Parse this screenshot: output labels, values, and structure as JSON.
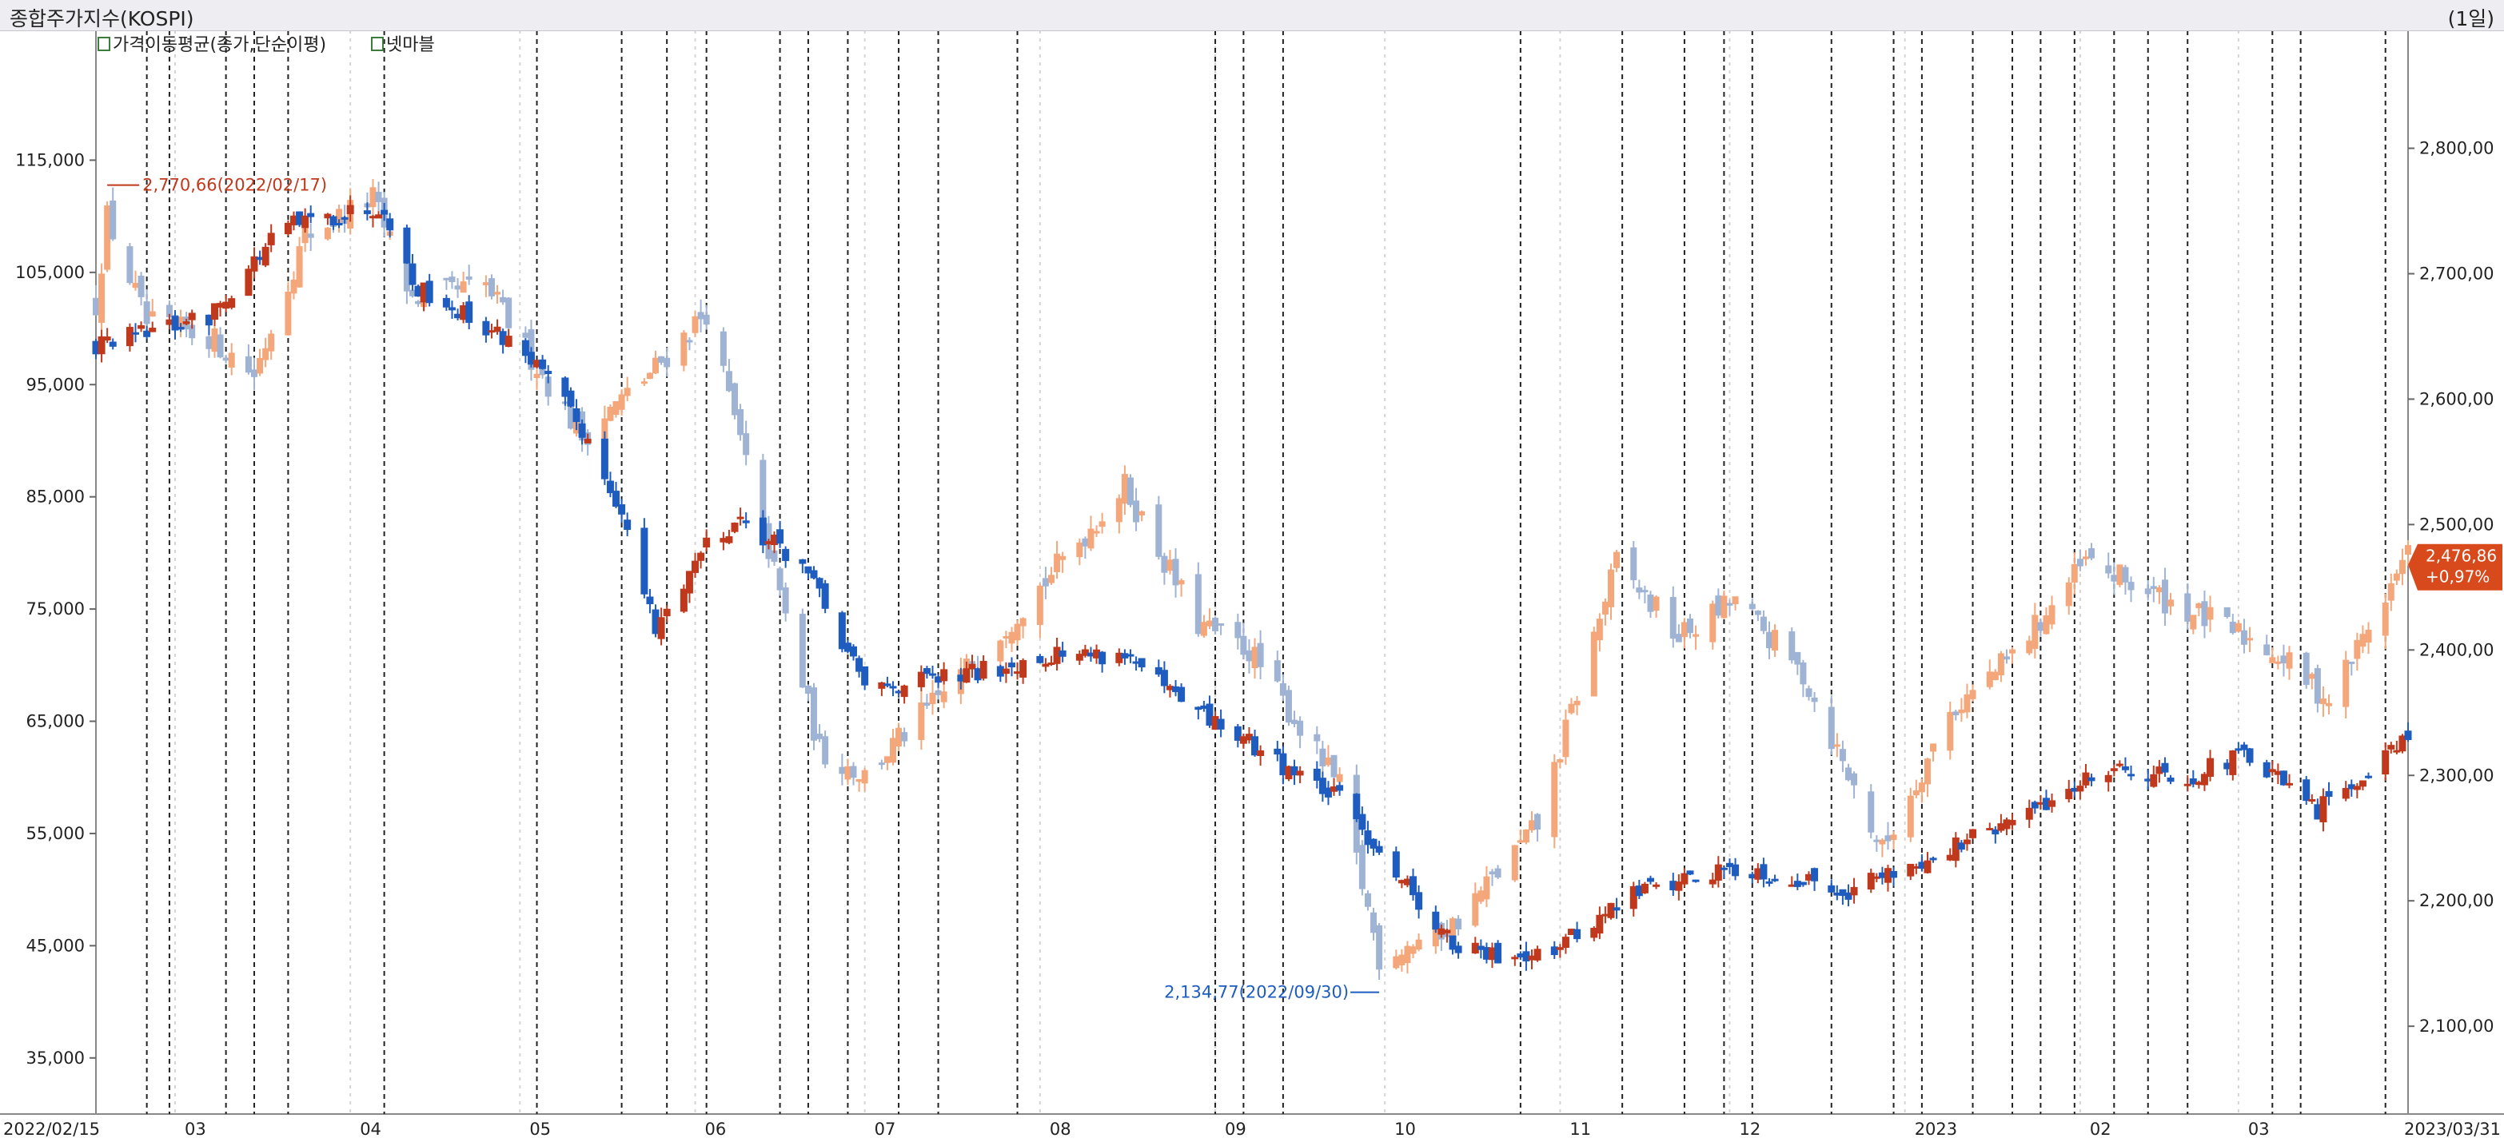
{
  "header": {
    "title": "종합주가지수(KOSPI)",
    "period": "(1일)"
  },
  "legend": [
    {
      "label": "가격이동평균(종가,단순이평)"
    },
    {
      "label": "넷마블"
    }
  ],
  "chart_data": {
    "type": "candlestick",
    "x_start": "2022/02/15",
    "x_end": "2023/03/31",
    "x_ticks": [
      "03",
      "04",
      "05",
      "06",
      "07",
      "08",
      "09",
      "10",
      "11",
      "12",
      "2023",
      "02",
      "03"
    ],
    "left_axis": {
      "ticks": [
        "115,000",
        "105,000",
        "95,000",
        "85,000",
        "75,000",
        "65,000",
        "55,000",
        "45,000",
        "35,000"
      ],
      "range": [
        30000,
        125000
      ]
    },
    "right_axis": {
      "ticks": [
        "2,800,00",
        "2,700,00",
        "2,600,00",
        "2,500,00",
        "2,400,00",
        "2,300,00",
        "2,200,00",
        "2,100,00"
      ],
      "range": [
        2030,
        2880
      ]
    },
    "current_value": {
      "value": "2,476,86",
      "change": "+0,97%"
    },
    "annotations": {
      "high": "2,770,66(2022/02/17)",
      "low": "2,134,77(2022/09/30)"
    },
    "colors": {
      "up": "#c0391c",
      "down": "#1f5cbf",
      "light_up": "#f4a77a",
      "light_down": "#9fb3d4"
    },
    "series": [
      {
        "name": "종합주가지수(KOSPI)",
        "axis": "right",
        "anchor_closes": [
          [
            "2022-02-15",
            2676
          ],
          [
            "2022-02-17",
            2745
          ],
          [
            "2022-02-24",
            2660
          ],
          [
            "2022-03-07",
            2650
          ],
          [
            "2022-03-15",
            2620
          ],
          [
            "2022-03-24",
            2730
          ],
          [
            "2022-04-05",
            2760
          ],
          [
            "2022-04-12",
            2680
          ],
          [
            "2022-04-25",
            2690
          ],
          [
            "2022-05-12",
            2570
          ],
          [
            "2022-05-24",
            2620
          ],
          [
            "2022-06-03",
            2670
          ],
          [
            "2022-06-14",
            2480
          ],
          [
            "2022-06-23",
            2320
          ],
          [
            "2022-07-01",
            2300
          ],
          [
            "2022-07-18",
            2380
          ],
          [
            "2022-08-01",
            2450
          ],
          [
            "2022-08-16",
            2530
          ],
          [
            "2022-08-29",
            2420
          ],
          [
            "2022-09-07",
            2400
          ],
          [
            "2022-09-23",
            2290
          ],
          [
            "2022-09-30",
            2155
          ],
          [
            "2022-10-13",
            2180
          ],
          [
            "2022-10-28",
            2260
          ],
          [
            "2022-11-11",
            2470
          ],
          [
            "2022-11-22",
            2410
          ],
          [
            "2022-12-02",
            2440
          ],
          [
            "2022-12-14",
            2380
          ],
          [
            "2022-12-28",
            2240
          ],
          [
            "2023-01-09",
            2350
          ],
          [
            "2023-01-20",
            2395
          ],
          [
            "2023-02-02",
            2470
          ],
          [
            "2023-02-16",
            2440
          ],
          [
            "2023-03-07",
            2400
          ],
          [
            "2023-03-17",
            2360
          ],
          [
            "2023-03-31",
            2476
          ]
        ]
      },
      {
        "name": "넷마블",
        "axis": "left",
        "anchor_closes": [
          [
            "2022-02-15",
            98500
          ],
          [
            "2022-03-07",
            101000
          ],
          [
            "2022-03-20",
            109000
          ],
          [
            "2022-04-07",
            111000
          ],
          [
            "2022-04-12",
            104000
          ],
          [
            "2022-05-02",
            98000
          ],
          [
            "2022-05-12",
            91000
          ],
          [
            "2022-05-18",
            85000
          ],
          [
            "2022-05-25",
            73000
          ],
          [
            "2022-06-03",
            81000
          ],
          [
            "2022-06-09",
            83000
          ],
          [
            "2022-06-20",
            79000
          ],
          [
            "2022-07-01",
            68000
          ],
          [
            "2022-07-18",
            69000
          ],
          [
            "2022-08-03",
            71000
          ],
          [
            "2022-08-16",
            71000
          ],
          [
            "2022-08-25",
            67000
          ],
          [
            "2022-09-07",
            63000
          ],
          [
            "2022-09-23",
            58000
          ],
          [
            "2022-10-04",
            51000
          ],
          [
            "2022-10-13",
            45000
          ],
          [
            "2022-10-20",
            44000
          ],
          [
            "2022-11-01",
            45000
          ],
          [
            "2022-11-15",
            50000
          ],
          [
            "2022-12-02",
            52000
          ],
          [
            "2022-12-22",
            50000
          ],
          [
            "2023-01-06",
            53000
          ],
          [
            "2023-01-20",
            56000
          ],
          [
            "2023-02-06",
            61000
          ],
          [
            "2023-02-20",
            60000
          ],
          [
            "2023-03-02",
            62000
          ],
          [
            "2023-03-15",
            57000
          ],
          [
            "2023-03-20",
            59000
          ],
          [
            "2023-03-31",
            64000
          ]
        ]
      }
    ]
  }
}
